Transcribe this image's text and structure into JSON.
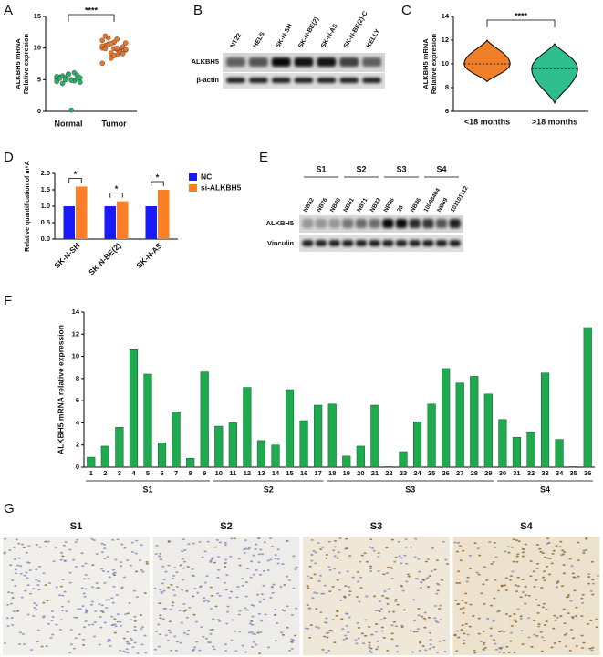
{
  "panel_labels": [
    "A",
    "B",
    "C",
    "D",
    "E",
    "F",
    "G"
  ],
  "chart_data": [
    {
      "type": "dot",
      "ylabel": [
        "ALKBH5 mRNA",
        "Relative expresion"
      ],
      "categories": [
        "Normal",
        "Tumor"
      ],
      "colors": [
        "#2fae6b",
        "#e8762b"
      ],
      "values": [
        [
          5.2,
          5.0,
          5.4,
          4.8,
          5.6,
          5.1,
          5.3,
          4.6,
          5.9,
          5.5,
          4.9,
          5.2,
          6.1,
          4.4,
          5.7,
          5.0,
          5.3,
          5.8,
          4.7,
          0.2
        ],
        [
          10.0,
          9.8,
          10.3,
          9.5,
          10.6,
          10.1,
          9.2,
          10.8,
          9.9,
          11.2,
          8.9,
          10.4,
          9.6,
          11.6,
          10.2,
          8.4,
          9.7,
          10.9,
          7.6,
          10.0,
          11.9,
          9.4,
          10.5,
          9.1,
          10.7,
          9.8,
          8.8,
          10.3,
          11.4,
          9.9
        ]
      ],
      "ylim": [
        0,
        15
      ],
      "yticks": [
        0,
        5,
        10,
        15
      ],
      "annotation": "****"
    },
    {
      "type": "violin",
      "ylabel": [
        "ALKBH5 mRNA",
        "Relative expresion"
      ],
      "categories": [
        "<18 months",
        ">18 months"
      ],
      "colors": [
        "#f07f2a",
        "#2fbf8f"
      ],
      "min": [
        8.5,
        6.7
      ],
      "median": [
        10.0,
        9.6
      ],
      "max": [
        12.0,
        11.7
      ],
      "ylim": [
        6,
        14
      ],
      "yticks": [
        6,
        8,
        10,
        12,
        14
      ],
      "annotation": "****"
    },
    {
      "type": "bar",
      "ylabel": "Relative quantification of m⁶A",
      "categories": [
        "SK-N-SH",
        "SK-N-BE(2)",
        "SK-N-AS"
      ],
      "series": [
        {
          "name": "NC",
          "color": "#1a1aff",
          "values": [
            1.0,
            1.0,
            1.0
          ]
        },
        {
          "name": "si-ALKBH5",
          "color": "#ff7f27",
          "values": [
            1.6,
            1.15,
            1.5
          ]
        }
      ],
      "ylim": [
        0,
        2
      ],
      "yticks": [
        {
          "value": 0,
          "label": "0.0"
        },
        {
          "value": 0.5,
          "label": "0.5"
        },
        {
          "value": 1,
          "label": "1.0"
        },
        {
          "value": 1.5,
          "label": "1.5"
        },
        {
          "value": 2,
          "label": "2.0"
        }
      ],
      "annotations": [
        "*",
        "*",
        "*"
      ],
      "legend": "upper right"
    },
    {
      "type": "bar",
      "ylabel": "ALKBH5 mRNA relative expression",
      "categories": [
        "1",
        "2",
        "3",
        "4",
        "5",
        "6",
        "7",
        "8",
        "9",
        "10",
        "11",
        "12",
        "13",
        "14",
        "15",
        "16",
        "17",
        "18",
        "19",
        "20",
        "21",
        "22",
        "23",
        "24",
        "25",
        "26",
        "27",
        "28",
        "29",
        "30",
        "31",
        "32",
        "33",
        "34",
        "35",
        "36"
      ],
      "series": [
        {
          "color": "#1faa4f",
          "values": [
            0.9,
            1.9,
            3.6,
            10.6,
            8.4,
            2.2,
            5.0,
            0.8,
            8.6,
            3.7,
            4.0,
            7.2,
            2.4,
            2.0,
            7.0,
            4.2,
            5.6,
            5.7,
            1.0,
            1.9,
            5.6,
            0.05,
            1.4,
            4.1,
            5.7,
            8.9,
            7.6,
            8.2,
            6.6,
            4.3,
            2.7,
            3.2,
            8.5,
            2.5,
            0.05,
            12.6
          ]
        }
      ],
      "ylim": [
        0,
        14
      ],
      "yticks": [
        0,
        2,
        4,
        6,
        8,
        10,
        12,
        14
      ],
      "groups": [
        {
          "label": "S1",
          "size": 9
        },
        {
          "label": "S2",
          "size": 8
        },
        {
          "label": "S3",
          "size": 12
        },
        {
          "label": "S4",
          "size": 7
        }
      ]
    }
  ],
  "blot_b": {
    "lanes": [
      "NT22",
      "HELS",
      "SK-N-SH",
      "SK-N-BE(2)",
      "SK-N-AS",
      "SK-N-BE(2)-C",
      "KELLY"
    ],
    "rows": [
      "ALKBH5",
      "β-actin"
    ]
  },
  "blot_e": {
    "groups": [
      {
        "label": "S1",
        "lanes": [
          "NB52",
          "NB76",
          "NB40"
        ]
      },
      {
        "label": "S2",
        "lanes": [
          "NB61",
          "NB71",
          "NB32"
        ]
      },
      {
        "label": "S3",
        "lanes": [
          "NB56",
          "33",
          "NB36"
        ]
      },
      {
        "label": "S4",
        "lanes": [
          "10088404",
          "NB69",
          "101101112"
        ]
      }
    ],
    "rows": [
      "ALKBH5",
      "Vinculin"
    ]
  },
  "histology": {
    "titles": [
      "S1",
      "S2",
      "S3",
      "S4"
    ]
  }
}
